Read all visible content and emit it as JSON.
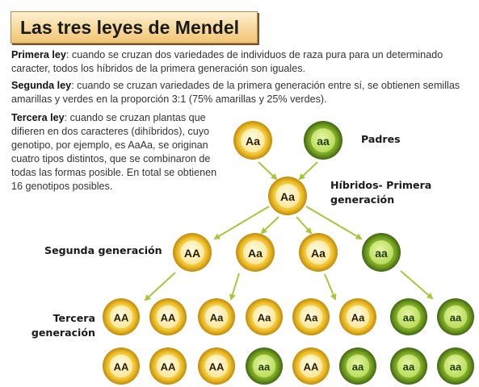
{
  "title": "Las tres leyes de Mendel",
  "laws": {
    "first": {
      "name": "Primera ley",
      "text": ": cuando se cruzan dos variedades de individuos de raza pura para un determinado caracter, todos los híbridos de la primera generación son iguales."
    },
    "second": {
      "name": "Segunda ley",
      "text": ": cuando se cruzan variedades de la primera generación entre sí, se obtienen semillas amarillas y verdes en la proporción 3:1 (75% amarillas y 25% verdes)."
    },
    "third": {
      "name": "Tercera ley",
      "text": ": cuando se cruzan plantas que difieren en dos caracteres (dihíbridos), cuyo genotipo, por ejemplo, es AaAa, se originan cuatro tipos distintos, que se combinaron de todas las formas posible. En total se obtienen 16 genotipos posibles."
    }
  },
  "labels": {
    "parents": "Padres",
    "hybrids": "Híbridos- Primera generación",
    "second_generation": "Segunda generación",
    "third_generation": "Tercera generación"
  },
  "colors": {
    "yellow_seed": "#e9b81f",
    "green_seed": "#6f9a1e",
    "arrow": "#a5c73a"
  },
  "generations": {
    "parents": [
      {
        "genotype": "Aa",
        "color": "yellow"
      },
      {
        "genotype": "aa",
        "color": "green"
      }
    ],
    "first": [
      {
        "genotype": "Aa",
        "color": "yellow"
      }
    ],
    "second": [
      {
        "genotype": "AA",
        "color": "yellow"
      },
      {
        "genotype": "Aa",
        "color": "yellow"
      },
      {
        "genotype": "Aa",
        "color": "yellow"
      },
      {
        "genotype": "aa",
        "color": "green"
      }
    ],
    "third_row1": [
      {
        "genotype": "AA",
        "color": "yellow"
      },
      {
        "genotype": "AA",
        "color": "yellow"
      },
      {
        "genotype": "Aa",
        "color": "yellow"
      },
      {
        "genotype": "Aa",
        "color": "yellow"
      },
      {
        "genotype": "Aa",
        "color": "yellow"
      },
      {
        "genotype": "Aa",
        "color": "yellow"
      },
      {
        "genotype": "aa",
        "color": "green"
      },
      {
        "genotype": "aa",
        "color": "green"
      }
    ],
    "third_row2": [
      {
        "genotype": "AA",
        "color": "yellow"
      },
      {
        "genotype": "AA",
        "color": "yellow"
      },
      {
        "genotype": "AA",
        "color": "yellow"
      },
      {
        "genotype": "aa",
        "color": "green"
      },
      {
        "genotype": "AA",
        "color": "yellow"
      },
      {
        "genotype": "aa",
        "color": "green"
      },
      {
        "genotype": "aa",
        "color": "green"
      },
      {
        "genotype": "aa",
        "color": "green"
      }
    ]
  }
}
